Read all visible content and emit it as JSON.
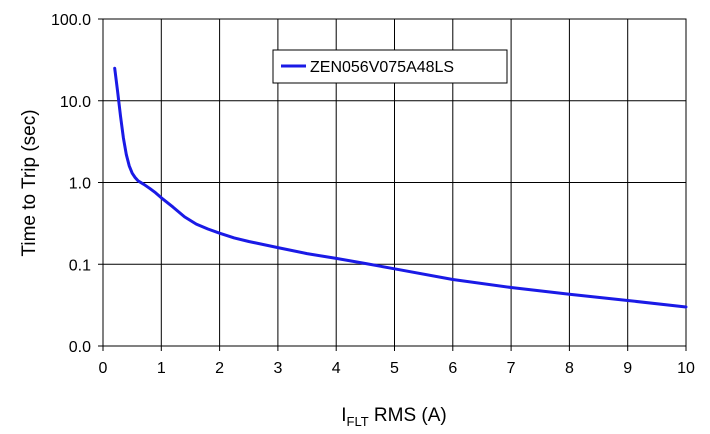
{
  "chart_data": {
    "type": "line",
    "title": "",
    "xlabel": {
      "main": "I",
      "subscript": "FLT",
      "rest": " RMS (A)"
    },
    "ylabel": "Time to Trip (sec)",
    "xlim": [
      0,
      10
    ],
    "ylim": [
      0.01,
      100
    ],
    "x_scale": "linear",
    "y_scale": "log",
    "grid": true,
    "legend_position": "top-right",
    "x_ticks": [
      "0",
      "1",
      "2",
      "3",
      "4",
      "5",
      "6",
      "7",
      "8",
      "9",
      "10"
    ],
    "y_ticks": [
      {
        "value": 100,
        "label": "100.0"
      },
      {
        "value": 10,
        "label": "10.0"
      },
      {
        "value": 1,
        "label": "1.0"
      },
      {
        "value": 0.1,
        "label": "0.1"
      },
      {
        "value": 0.01,
        "label": "0.0"
      }
    ],
    "series": [
      {
        "name": "ZEN056V075A48LS",
        "color": "#1a1ae6",
        "x": [
          0.2,
          0.25,
          0.3,
          0.35,
          0.4,
          0.45,
          0.5,
          0.55,
          0.6,
          0.7,
          0.8,
          0.9,
          1.0,
          1.2,
          1.4,
          1.6,
          1.8,
          2.0,
          2.25,
          2.5,
          3.0,
          3.5,
          4.0,
          4.5,
          5.0,
          6.0,
          7.0,
          8.0,
          9.0,
          10.0
        ],
        "y": [
          25,
          13,
          6.5,
          3.5,
          2.2,
          1.6,
          1.3,
          1.15,
          1.05,
          0.95,
          0.85,
          0.75,
          0.65,
          0.5,
          0.38,
          0.31,
          0.27,
          0.24,
          0.21,
          0.19,
          0.16,
          0.135,
          0.118,
          0.102,
          0.088,
          0.065,
          0.052,
          0.043,
          0.036,
          0.03
        ]
      }
    ]
  }
}
